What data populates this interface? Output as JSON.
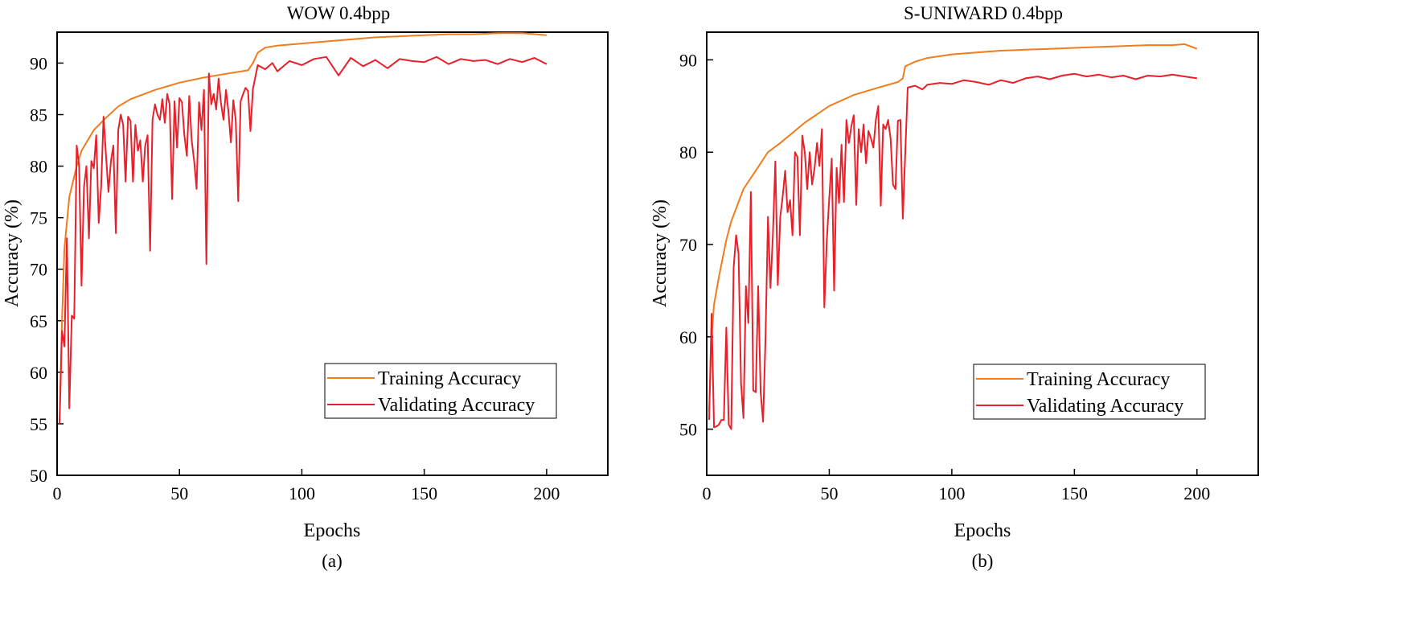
{
  "colors": {
    "training": "#f07c1c",
    "validating": "#e8202a",
    "axis": "#000000"
  },
  "chart_data": [
    {
      "type": "line",
      "title": "WOW 0.4bpp",
      "caption": "(a)",
      "xlabel": "Epochs",
      "ylabel": "Accuracy (%)",
      "xlim": [
        0,
        225
      ],
      "ylim": [
        50,
        93
      ],
      "xticks": [
        0,
        50,
        100,
        150,
        200
      ],
      "yticks": [
        50,
        55,
        60,
        65,
        70,
        75,
        80,
        85,
        90
      ],
      "legend_position": "bottom-right",
      "series": [
        {
          "name": "Training Accuracy",
          "x": [
            1,
            2,
            3,
            5,
            8,
            10,
            15,
            20,
            25,
            30,
            40,
            50,
            60,
            70,
            78,
            80,
            82,
            85,
            90,
            100,
            110,
            120,
            130,
            140,
            150,
            160,
            170,
            180,
            190,
            200
          ],
          "values": [
            55,
            65,
            72,
            77,
            80,
            81.5,
            83.5,
            84.7,
            85.8,
            86.5,
            87.4,
            88.1,
            88.6,
            89.0,
            89.3,
            90.0,
            91.0,
            91.5,
            91.7,
            91.9,
            92.1,
            92.3,
            92.5,
            92.6,
            92.7,
            92.8,
            92.8,
            92.9,
            92.9,
            92.7
          ]
        },
        {
          "name": "Validating Accuracy",
          "x": [
            1,
            2,
            3,
            4,
            5,
            6,
            7,
            8,
            9,
            10,
            11,
            12,
            13,
            14,
            15,
            16,
            17,
            18,
            19,
            20,
            21,
            22,
            23,
            24,
            25,
            26,
            27,
            28,
            29,
            30,
            31,
            32,
            33,
            34,
            35,
            36,
            37,
            38,
            39,
            40,
            41,
            42,
            43,
            44,
            45,
            46,
            47,
            48,
            49,
            50,
            51,
            52,
            53,
            54,
            55,
            56,
            57,
            58,
            59,
            60,
            61,
            62,
            63,
            64,
            65,
            66,
            67,
            68,
            69,
            70,
            71,
            72,
            73,
            74,
            75,
            76,
            77,
            78,
            79,
            80,
            82,
            85,
            88,
            90,
            95,
            100,
            105,
            110,
            115,
            120,
            125,
            130,
            135,
            140,
            145,
            150,
            155,
            160,
            165,
            170,
            175,
            180,
            185,
            190,
            195,
            200
          ],
          "values": [
            55,
            64,
            62.5,
            73,
            56.5,
            65.5,
            65.2,
            82,
            80,
            68.4,
            78,
            80,
            73,
            80.5,
            79.8,
            83,
            74.5,
            78,
            84.8,
            81,
            77.5,
            80.5,
            82,
            73.5,
            83.5,
            85,
            84,
            78.5,
            84.8,
            84.4,
            78.5,
            84,
            81.5,
            82.5,
            78.5,
            82,
            83,
            71.8,
            84.5,
            86,
            85,
            84.5,
            86.5,
            84.2,
            87,
            86,
            76.8,
            86.3,
            81.8,
            86.6,
            86.2,
            83,
            81,
            86.8,
            82.5,
            80.5,
            77.8,
            86.2,
            83.5,
            87.4,
            70.5,
            89,
            86,
            87,
            85.5,
            88.5,
            86,
            84.5,
            87.4,
            85.3,
            82.3,
            86.4,
            84.5,
            76.6,
            86.3,
            87,
            87.6,
            87.3,
            83.4,
            87.5,
            89.8,
            89.4,
            90,
            89.2,
            90.2,
            89.8,
            90.4,
            90.6,
            88.8,
            90.5,
            89.7,
            90.3,
            89.5,
            90.4,
            90.2,
            90.1,
            90.6,
            89.9,
            90.4,
            90.2,
            90.3,
            89.9,
            90.4,
            90.1,
            90.5,
            89.9
          ]
        }
      ]
    },
    {
      "type": "line",
      "title": "S-UNIWARD 0.4bpp",
      "caption": "(b)",
      "xlabel": "Epochs",
      "ylabel": "Accuracy (%)",
      "xlim": [
        0,
        225
      ],
      "ylim": [
        45,
        93
      ],
      "xticks": [
        0,
        50,
        100,
        150,
        200
      ],
      "yticks": [
        50,
        60,
        70,
        80,
        90
      ],
      "legend_position": "bottom-right",
      "series": [
        {
          "name": "Training Accuracy",
          "x": [
            1,
            2,
            3,
            5,
            8,
            10,
            15,
            20,
            25,
            30,
            40,
            50,
            60,
            70,
            78,
            80,
            81,
            85,
            90,
            100,
            110,
            120,
            130,
            140,
            150,
            160,
            170,
            180,
            190,
            195,
            200
          ],
          "values": [
            52,
            60,
            63.5,
            66.5,
            70.5,
            72.5,
            76,
            78,
            80,
            81,
            83.2,
            85,
            86.2,
            87,
            87.6,
            88,
            89.3,
            89.8,
            90.2,
            90.6,
            90.8,
            91.0,
            91.1,
            91.2,
            91.3,
            91.4,
            91.5,
            91.6,
            91.6,
            91.7,
            91.2
          ]
        },
        {
          "name": "Validating Accuracy",
          "x": [
            1,
            2,
            3,
            4,
            5,
            6,
            7,
            8,
            9,
            10,
            11,
            12,
            13,
            14,
            15,
            16,
            17,
            18,
            19,
            20,
            21,
            22,
            23,
            24,
            25,
            26,
            27,
            28,
            29,
            30,
            31,
            32,
            33,
            34,
            35,
            36,
            37,
            38,
            39,
            40,
            41,
            42,
            43,
            44,
            45,
            46,
            47,
            48,
            49,
            50,
            51,
            52,
            53,
            54,
            55,
            56,
            57,
            58,
            59,
            60,
            61,
            62,
            63,
            64,
            65,
            66,
            67,
            68,
            69,
            70,
            71,
            72,
            73,
            74,
            75,
            76,
            77,
            78,
            79,
            80,
            82,
            85,
            88,
            90,
            95,
            100,
            105,
            110,
            115,
            120,
            125,
            130,
            135,
            140,
            145,
            150,
            155,
            160,
            165,
            170,
            175,
            180,
            185,
            190,
            195,
            200
          ],
          "values": [
            51,
            62.5,
            50.2,
            50.3,
            50.5,
            51,
            51,
            61,
            50.5,
            50,
            67.5,
            71,
            69,
            55,
            51.2,
            65.5,
            61.5,
            75.7,
            54.2,
            54,
            65.5,
            54,
            50.8,
            60,
            73,
            65.3,
            71,
            79,
            65.6,
            73,
            75.2,
            78,
            73.5,
            74.8,
            71,
            80,
            79.5,
            71,
            81.8,
            80,
            76,
            80,
            76.5,
            78.3,
            81,
            78.5,
            82.5,
            63.2,
            70.5,
            75,
            79.3,
            65,
            78.3,
            74.5,
            80.8,
            74.6,
            83.5,
            81,
            82.8,
            84,
            74.3,
            82.5,
            80,
            83,
            78.8,
            82.3,
            81.5,
            80.5,
            83.5,
            85,
            74.2,
            83,
            82.5,
            83.5,
            81.5,
            76.5,
            76,
            83.4,
            83.5,
            72.8,
            87,
            87.2,
            86.8,
            87.3,
            87.5,
            87.4,
            87.8,
            87.6,
            87.3,
            87.8,
            87.5,
            88,
            88.2,
            87.9,
            88.3,
            88.5,
            88.2,
            88.4,
            88.1,
            88.3,
            87.9,
            88.3,
            88.2,
            88.4,
            88.2,
            88.0
          ]
        }
      ]
    }
  ]
}
